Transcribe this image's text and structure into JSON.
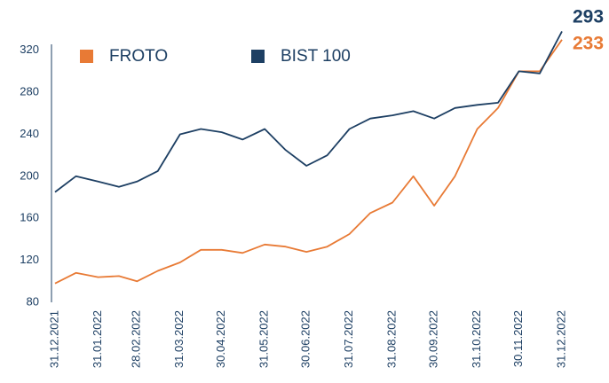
{
  "chart_data": {
    "type": "line",
    "x": [
      "31.12.2021",
      "15.01.2022",
      "31.01.2022",
      "15.02.2022",
      "28.02.2022",
      "15.03.2022",
      "31.03.2022",
      "15.04.2022",
      "30.04.2022",
      "15.05.2022",
      "31.05.2022",
      "15.06.2022",
      "30.06.2022",
      "15.07.2022",
      "31.07.2022",
      "15.08.2022",
      "31.08.2022",
      "15.09.2022",
      "30.09.2022",
      "15.10.2022",
      "31.10.2022",
      "15.11.2022",
      "30.11.2022",
      "15.12.2022",
      "31.12.2022"
    ],
    "series": [
      {
        "name": "FROTO",
        "color": "#e87a35",
        "values": [
          98,
          108,
          104,
          105,
          100,
          110,
          118,
          130,
          130,
          127,
          135,
          133,
          128,
          133,
          145,
          165,
          175,
          200,
          172,
          200,
          245,
          265,
          300,
          300,
          330
        ]
      },
      {
        "name": "BIST 100",
        "color": "#1d3f63",
        "values": [
          185,
          200,
          195,
          190,
          195,
          205,
          240,
          245,
          242,
          235,
          245,
          225,
          210,
          220,
          245,
          255,
          258,
          262,
          255,
          265,
          268,
          270,
          300,
          298,
          338
        ]
      }
    ],
    "annotations": [
      {
        "text": "293",
        "color": "#1d3f63"
      },
      {
        "text": "233",
        "color": "#e87a35"
      }
    ],
    "xlim": [
      "31.12.2021",
      "31.12.2022"
    ],
    "xticks": [
      "31.12.2021",
      "31.01.2022",
      "28.02.2022",
      "31.03.2022",
      "30.04.2022",
      "31.05.2022",
      "30.06.2022",
      "31.07.2022",
      "31.08.2022",
      "30.09.2022",
      "31.10.2022",
      "30.11.2022",
      "31.12.2022"
    ],
    "ylim": [
      80,
      340
    ],
    "yticks": [
      80,
      120,
      160,
      200,
      240,
      280,
      320
    ],
    "grid": false
  }
}
